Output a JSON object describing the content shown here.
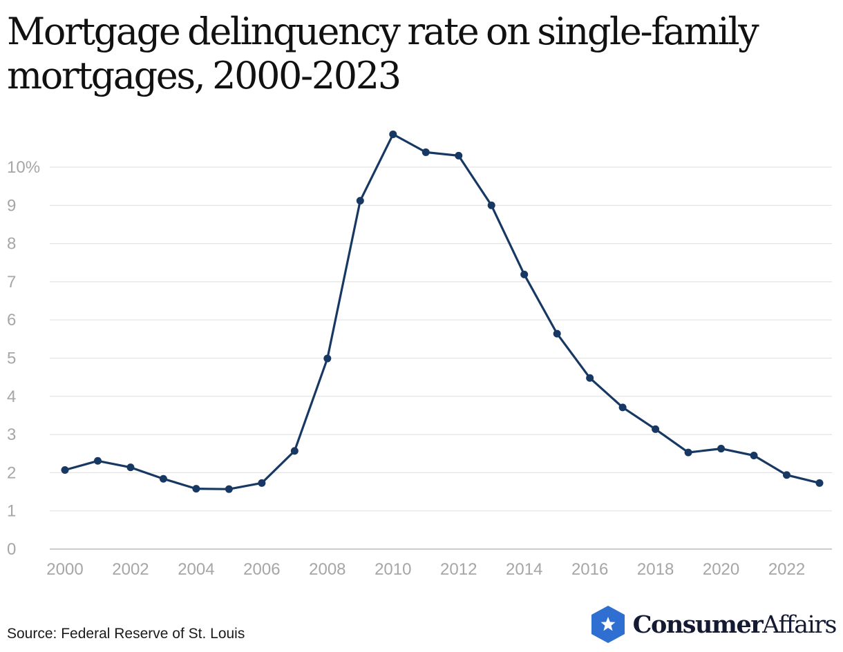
{
  "title": "Mortgage delinquency rate on single-family mortgages, 2000-2023",
  "source": "Source: Federal Reserve of St. Louis",
  "brand": {
    "strong": "Consumer",
    "light": "Affairs",
    "icon": "star-icon",
    "badge_color": "#2f6fd1"
  },
  "chart_data": {
    "type": "line",
    "title": "Mortgage delinquency rate on single-family mortgages, 2000-2023",
    "xlabel": "",
    "ylabel": "",
    "x": [
      2000,
      2001,
      2002,
      2003,
      2004,
      2005,
      2006,
      2007,
      2008,
      2009,
      2010,
      2011,
      2012,
      2013,
      2014,
      2015,
      2016,
      2017,
      2018,
      2019,
      2020,
      2021,
      2022,
      2023
    ],
    "series": [
      {
        "values": [
          2.07,
          2.31,
          2.14,
          1.84,
          1.58,
          1.57,
          1.73,
          2.57,
          4.99,
          9.12,
          10.86,
          10.39,
          10.3,
          9.0,
          7.19,
          5.64,
          4.48,
          3.71,
          3.14,
          2.53,
          2.63,
          2.45,
          1.94,
          1.73
        ],
        "color": "#163863"
      }
    ],
    "xlim": [
      2000,
      2023
    ],
    "ylim": [
      0,
      10
    ],
    "xticks": [
      "2000",
      "2002",
      "2004",
      "2006",
      "2008",
      "2010",
      "2012",
      "2014",
      "2016",
      "2018",
      "2020",
      "2022"
    ],
    "yticks": [
      "0",
      "1",
      "2",
      "3",
      "4",
      "5",
      "6",
      "7",
      "8",
      "9",
      "10%"
    ],
    "grid": true,
    "legend": "none"
  }
}
